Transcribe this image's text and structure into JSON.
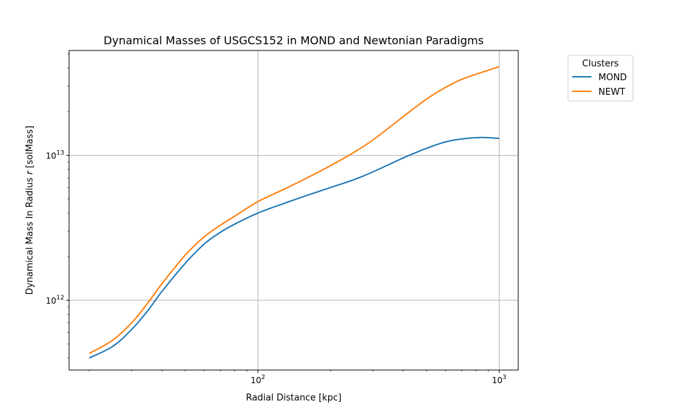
{
  "chart_data": {
    "type": "line",
    "title": "Dynamical Masses of USGCS152 in MOND and Newtonian Paradigms",
    "xlabel": "Radial Distance [kpc]",
    "ylabel_prefix": "Dynamical Mass In Radius ",
    "ylabel_var": "r",
    "ylabel_suffix": " [solMass]",
    "xscale": "log",
    "yscale": "log",
    "xlim": [
      16.5,
      1200
    ],
    "ylim": [
      330000000000.0,
      53000000000000.0
    ],
    "grid": true,
    "x_ticks": [
      {
        "value": 100,
        "base": "10",
        "exp": "2"
      },
      {
        "value": 1000,
        "base": "10",
        "exp": "3"
      }
    ],
    "y_ticks": [
      {
        "value": 1000000000000.0,
        "base": "10",
        "exp": "12"
      },
      {
        "value": 10000000000000.0,
        "base": "10",
        "exp": "13"
      }
    ],
    "legend": {
      "title": "Clusters",
      "position": "outside-top-right"
    },
    "series": [
      {
        "name": "MOND",
        "color": "#1f77b4",
        "x": [
          20,
          25,
          30,
          35,
          40,
          50,
          60,
          70,
          80,
          100,
          130,
          160,
          200,
          250,
          300,
          400,
          500,
          600,
          700,
          850,
          1000
        ],
        "y": [
          400000000000.0,
          480000000000.0,
          630000000000.0,
          850000000000.0,
          1150000000000.0,
          1800000000000.0,
          2450000000000.0,
          2950000000000.0,
          3350000000000.0,
          4000000000000.0,
          4700000000000.0,
          5300000000000.0,
          6000000000000.0,
          6800000000000.0,
          7700000000000.0,
          9600000000000.0,
          11200000000000.0,
          12400000000000.0,
          13000000000000.0,
          13300000000000.0,
          13100000000000.0
        ]
      },
      {
        "name": "NEWT",
        "color": "#ff7f0e",
        "x": [
          20,
          25,
          30,
          35,
          40,
          50,
          60,
          70,
          80,
          100,
          130,
          160,
          200,
          250,
          300,
          400,
          500,
          600,
          700,
          850,
          1000
        ],
        "y": [
          430000000000.0,
          530000000000.0,
          700000000000.0,
          960000000000.0,
          1300000000000.0,
          2050000000000.0,
          2750000000000.0,
          3300000000000.0,
          3800000000000.0,
          4800000000000.0,
          5900000000000.0,
          7000000000000.0,
          8500000000000.0,
          10500000000000.0,
          12800000000000.0,
          18500000000000.0,
          24500000000000.0,
          29500000000000.0,
          33500000000000.0,
          37500000000000.0,
          41000000000000.0
        ]
      }
    ]
  }
}
